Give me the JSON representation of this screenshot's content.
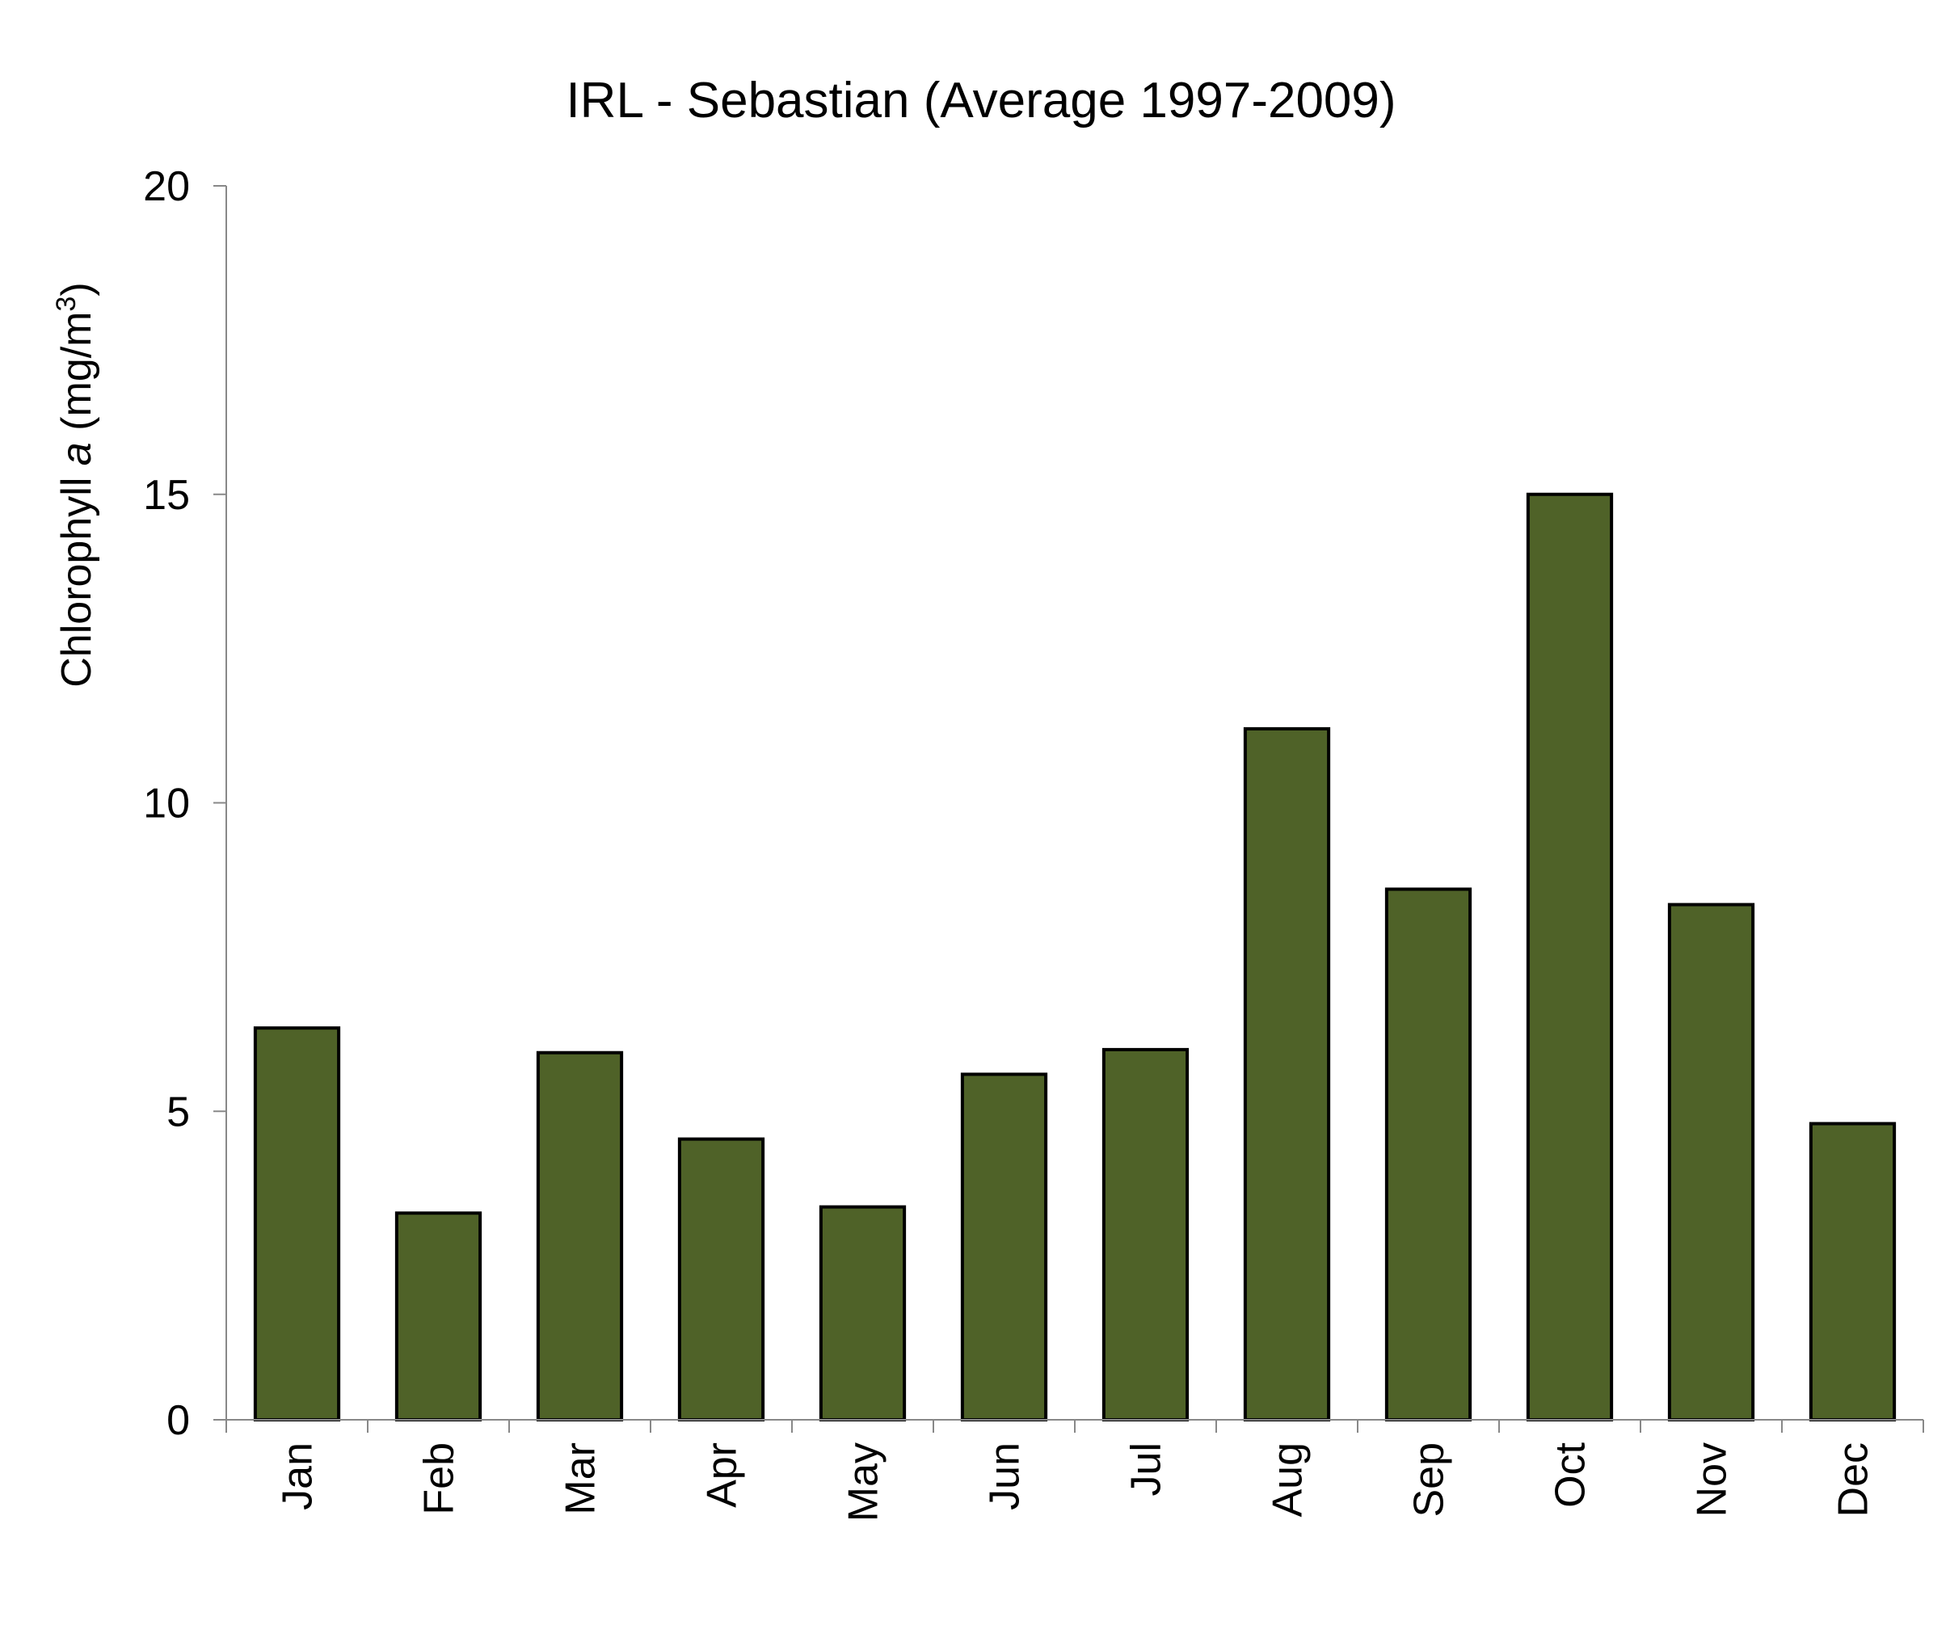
{
  "chart_data": {
    "type": "bar",
    "title": "IRL - Sebastian (Average 1997-2009)",
    "ylabel_prefix": "Chlorophyll ",
    "ylabel_italic": "a",
    "ylabel_suffix": " (mg/m",
    "ylabel_superscript": "3",
    "ylabel_close": ")",
    "xlabel": "",
    "categories": [
      "Jan",
      "Feb",
      "Mar",
      "Apr",
      "May",
      "Jun",
      "Jul",
      "Aug",
      "Sep",
      "Oct",
      "Nov",
      "Dec"
    ],
    "values": [
      6.35,
      3.35,
      5.95,
      4.55,
      3.45,
      5.6,
      6.0,
      11.2,
      8.6,
      15.0,
      8.35,
      4.8
    ],
    "ylim": [
      0,
      20
    ],
    "yticks": [
      0,
      5,
      10,
      15,
      20
    ],
    "grid": false,
    "legend": "none",
    "bar_color": "#4f6228",
    "bar_edge_color": "#000000"
  }
}
